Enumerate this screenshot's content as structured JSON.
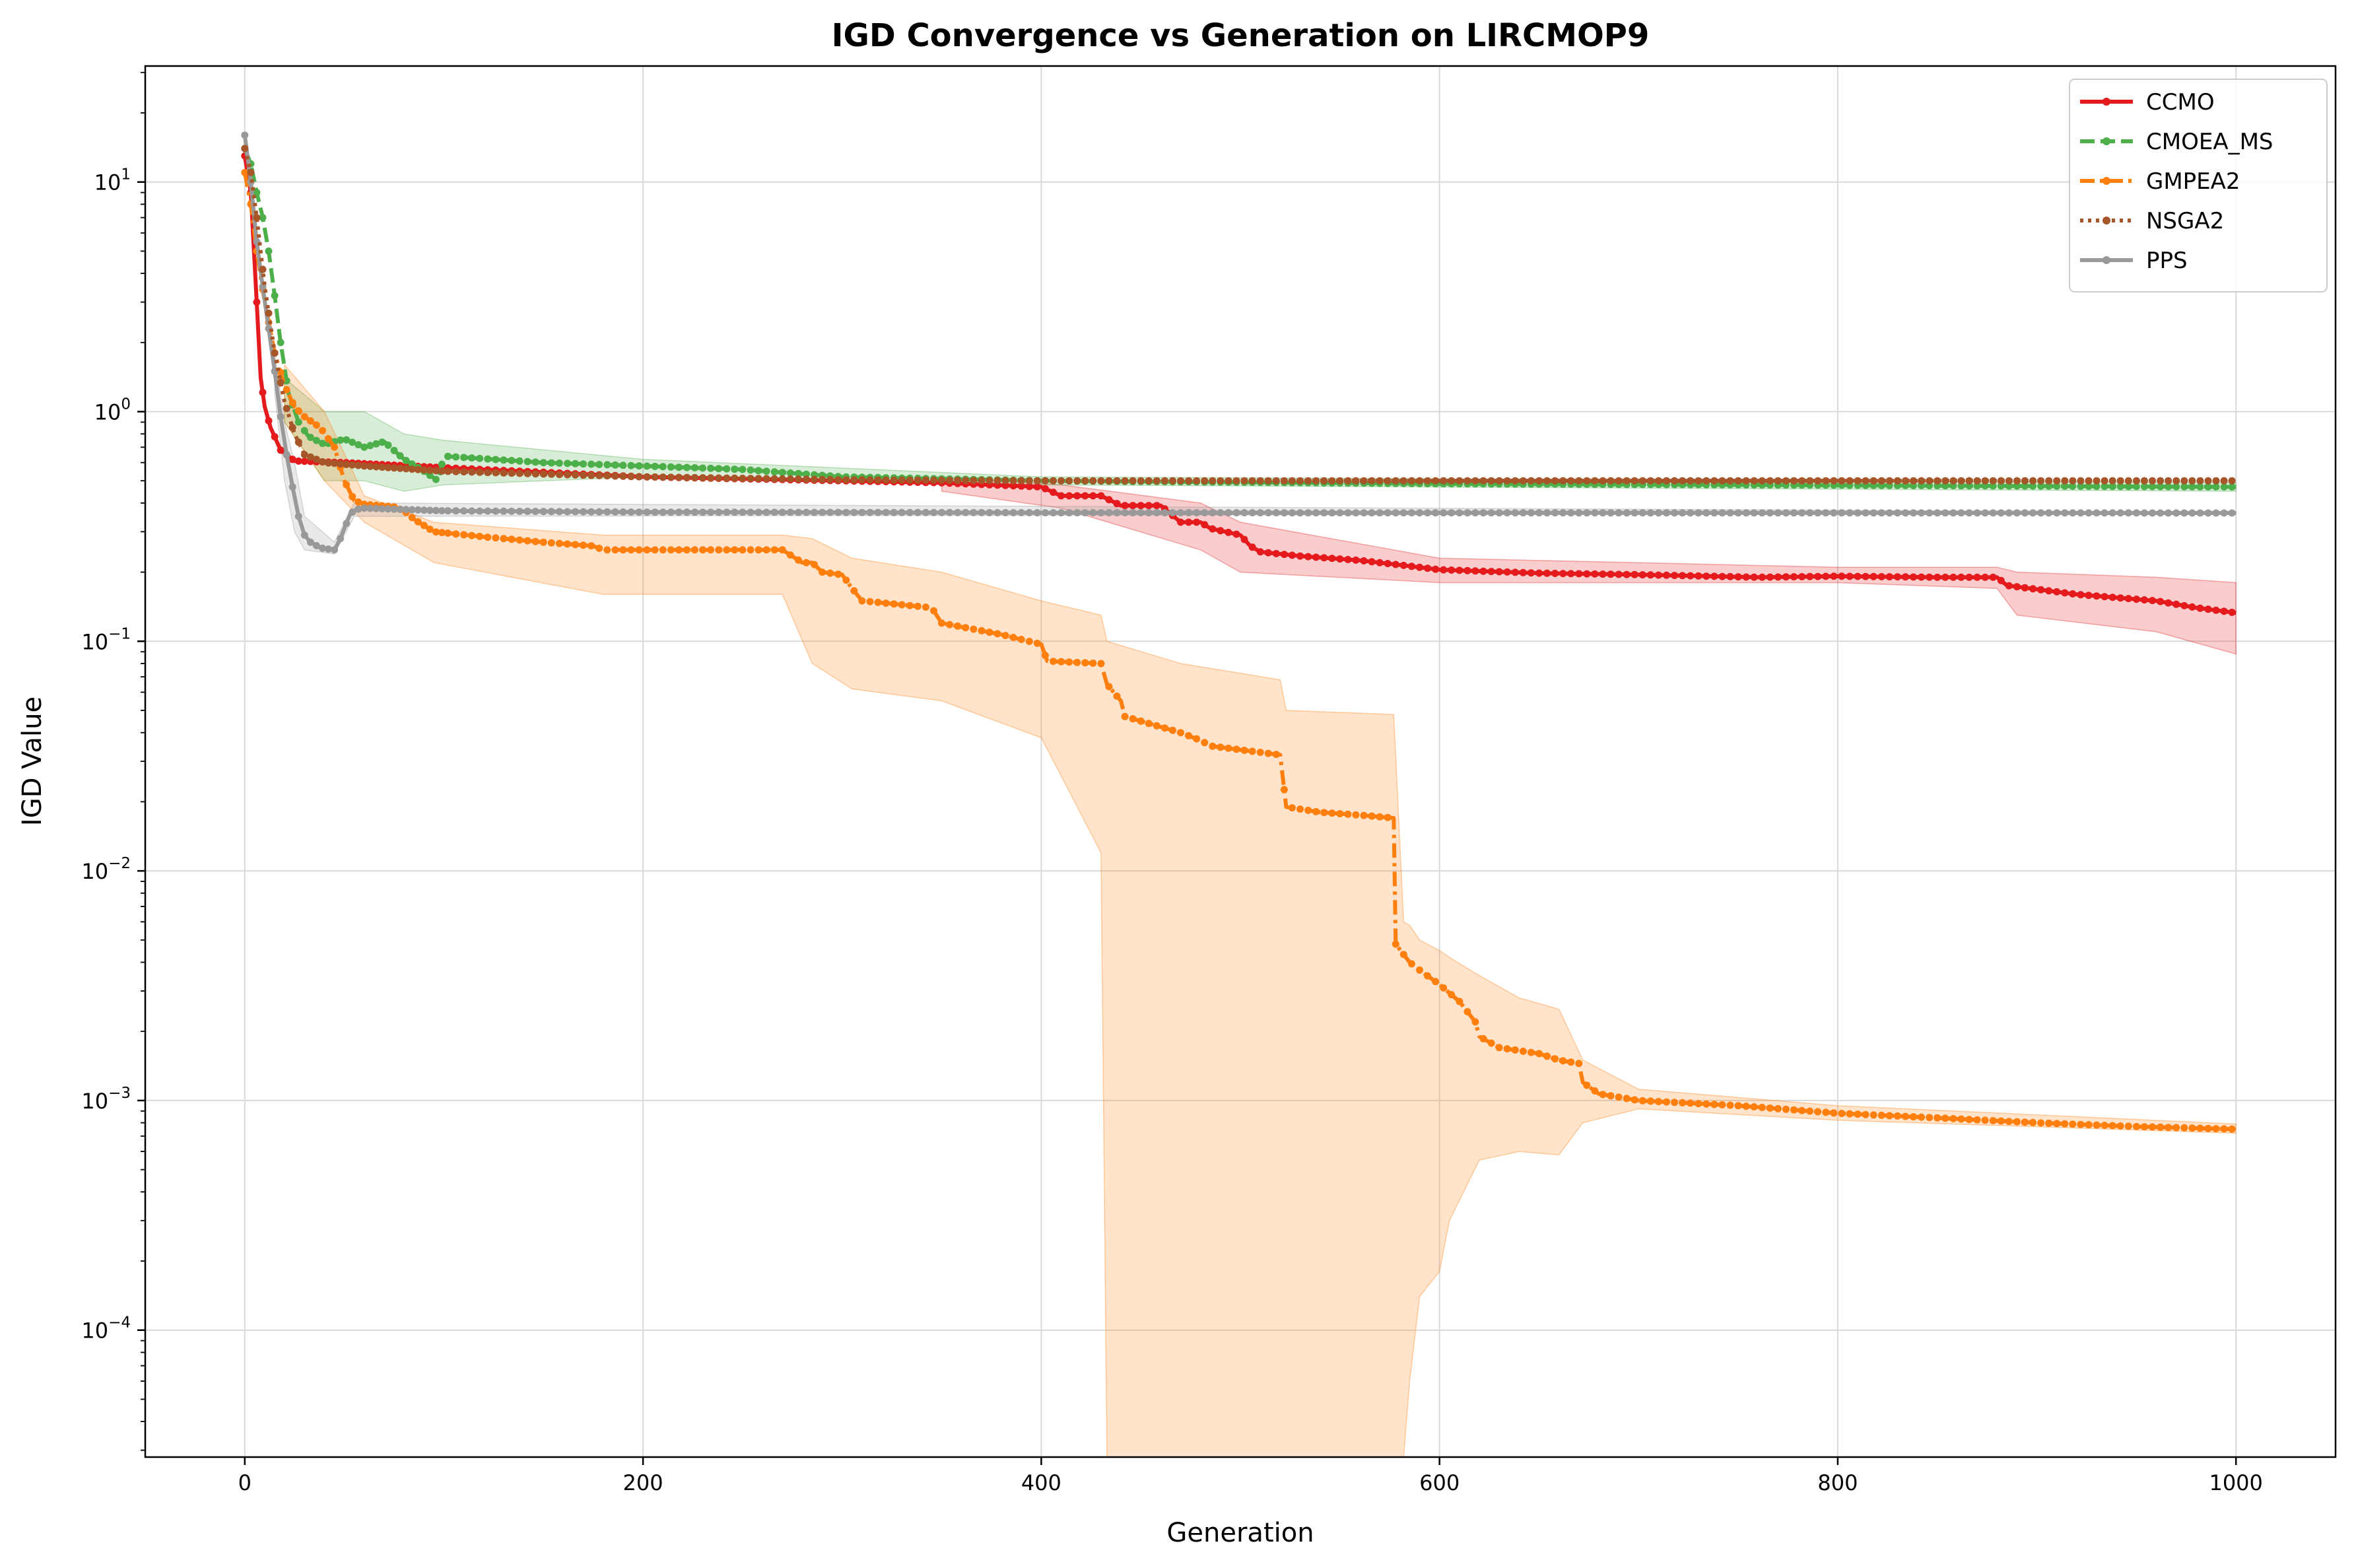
{
  "chart_data": {
    "type": "line",
    "title": "IGD Convergence vs Generation on LIRCMOP9",
    "xlabel": "Generation",
    "ylabel": "IGD Value",
    "yscale": "log",
    "xlim": [
      -50,
      1050
    ],
    "ylim": [
      2.8e-05,
      32
    ],
    "grid": true,
    "legend_placement": "top-right",
    "x_ticks": [
      {
        "value": 0,
        "label": "0"
      },
      {
        "value": 200,
        "label": "200"
      },
      {
        "value": 400,
        "label": "400"
      },
      {
        "value": 600,
        "label": "600"
      },
      {
        "value": 800,
        "label": "800"
      },
      {
        "value": 1000,
        "label": "1000"
      }
    ],
    "y_ticks": [
      {
        "value": 0.0001,
        "base": "10",
        "exp": "−4"
      },
      {
        "value": 0.001,
        "base": "10",
        "exp": "−3"
      },
      {
        "value": 0.01,
        "base": "10",
        "exp": "−2"
      },
      {
        "value": 0.1,
        "base": "10",
        "exp": "−1"
      },
      {
        "value": 1,
        "base": "10",
        "exp": "0"
      },
      {
        "value": 10,
        "base": "10",
        "exp": "1"
      }
    ],
    "series": [
      {
        "name": "CCMO",
        "color": "#e41a1c",
        "dash": "solid",
        "points": [
          [
            0,
            13
          ],
          [
            3,
            9
          ],
          [
            6,
            3
          ],
          [
            8,
            1.4
          ],
          [
            10,
            1.05
          ],
          [
            13,
            0.85
          ],
          [
            18,
            0.68
          ],
          [
            25,
            0.61
          ],
          [
            50,
            0.6
          ],
          [
            100,
            0.57
          ],
          [
            200,
            0.52
          ],
          [
            300,
            0.5
          ],
          [
            350,
            0.49
          ],
          [
            400,
            0.47
          ],
          [
            410,
            0.43
          ],
          [
            430,
            0.43
          ],
          [
            440,
            0.39
          ],
          [
            460,
            0.39
          ],
          [
            470,
            0.33
          ],
          [
            480,
            0.33
          ],
          [
            485,
            0.31
          ],
          [
            500,
            0.29
          ],
          [
            505,
            0.26
          ],
          [
            510,
            0.245
          ],
          [
            530,
            0.235
          ],
          [
            560,
            0.225
          ],
          [
            580,
            0.215
          ],
          [
            600,
            0.205
          ],
          [
            650,
            0.198
          ],
          [
            700,
            0.195
          ],
          [
            760,
            0.19
          ],
          [
            800,
            0.192
          ],
          [
            850,
            0.19
          ],
          [
            880,
            0.19
          ],
          [
            885,
            0.175
          ],
          [
            920,
            0.16
          ],
          [
            960,
            0.15
          ],
          [
            980,
            0.14
          ],
          [
            1000,
            0.133
          ]
        ],
        "band": [
          [
            350,
            0.45,
            0.52
          ],
          [
            410,
            0.38,
            0.48
          ],
          [
            480,
            0.25,
            0.4
          ],
          [
            500,
            0.2,
            0.33
          ],
          [
            600,
            0.18,
            0.23
          ],
          [
            800,
            0.18,
            0.21
          ],
          [
            880,
            0.17,
            0.21
          ],
          [
            890,
            0.13,
            0.2
          ],
          [
            960,
            0.11,
            0.19
          ],
          [
            1000,
            0.088,
            0.18
          ]
        ]
      },
      {
        "name": "CMOEA_MS",
        "color": "#4daf4a",
        "dash": "dashed",
        "points": [
          [
            0,
            14
          ],
          [
            3,
            12
          ],
          [
            6,
            9
          ],
          [
            9,
            7
          ],
          [
            12,
            5
          ],
          [
            15,
            3.2
          ],
          [
            18,
            2
          ],
          [
            22,
            1.2
          ],
          [
            27,
            0.9
          ],
          [
            32,
            0.78
          ],
          [
            40,
            0.72
          ],
          [
            50,
            0.76
          ],
          [
            60,
            0.7
          ],
          [
            70,
            0.74
          ],
          [
            80,
            0.62
          ],
          [
            90,
            0.55
          ],
          [
            97,
            0.5
          ],
          [
            100,
            0.64
          ],
          [
            150,
            0.6
          ],
          [
            200,
            0.58
          ],
          [
            250,
            0.56
          ],
          [
            300,
            0.52
          ],
          [
            400,
            0.5
          ],
          [
            600,
            0.485
          ],
          [
            800,
            0.478
          ],
          [
            1000,
            0.47
          ]
        ],
        "band": [
          [
            20,
            0.9,
            1.4
          ],
          [
            40,
            0.5,
            1.0
          ],
          [
            60,
            0.5,
            1.0
          ],
          [
            80,
            0.45,
            0.8
          ],
          [
            100,
            0.48,
            0.75
          ],
          [
            200,
            0.52,
            0.62
          ],
          [
            400,
            0.48,
            0.52
          ],
          [
            1000,
            0.45,
            0.49
          ]
        ]
      },
      {
        "name": "GMPEA2",
        "color": "#ff7f0e",
        "dash": "dashdot",
        "points": [
          [
            0,
            11
          ],
          [
            3,
            8
          ],
          [
            6,
            5
          ],
          [
            10,
            3
          ],
          [
            15,
            1.8
          ],
          [
            20,
            1.3
          ],
          [
            25,
            1.05
          ],
          [
            30,
            0.95
          ],
          [
            38,
            0.85
          ],
          [
            45,
            0.7
          ],
          [
            50,
            0.5
          ],
          [
            55,
            0.41
          ],
          [
            60,
            0.395
          ],
          [
            75,
            0.385
          ],
          [
            80,
            0.37
          ],
          [
            85,
            0.34
          ],
          [
            95,
            0.3
          ],
          [
            120,
            0.285
          ],
          [
            150,
            0.27
          ],
          [
            175,
            0.26
          ],
          [
            180,
            0.25
          ],
          [
            270,
            0.25
          ],
          [
            280,
            0.22
          ],
          [
            285,
            0.22
          ],
          [
            290,
            0.2
          ],
          [
            300,
            0.195
          ],
          [
            305,
            0.17
          ],
          [
            310,
            0.15
          ],
          [
            345,
            0.14
          ],
          [
            350,
            0.12
          ],
          [
            380,
            0.107
          ],
          [
            400,
            0.097
          ],
          [
            403,
            0.082
          ],
          [
            430,
            0.08
          ],
          [
            433,
            0.065
          ],
          [
            440,
            0.055
          ],
          [
            442,
            0.047
          ],
          [
            470,
            0.04
          ],
          [
            480,
            0.037
          ],
          [
            485,
            0.035
          ],
          [
            520,
            0.032
          ],
          [
            523,
            0.019
          ],
          [
            540,
            0.018
          ],
          [
            560,
            0.0175
          ],
          [
            577,
            0.017
          ],
          [
            578,
            0.0048
          ],
          [
            585,
            0.004
          ],
          [
            590,
            0.0037
          ],
          [
            600,
            0.0032
          ],
          [
            610,
            0.0027
          ],
          [
            618,
            0.0022
          ],
          [
            620,
            0.0019
          ],
          [
            630,
            0.0017
          ],
          [
            650,
            0.0016
          ],
          [
            660,
            0.0015
          ],
          [
            670,
            0.00145
          ],
          [
            672,
            0.0012
          ],
          [
            680,
            0.00107
          ],
          [
            700,
            0.001
          ],
          [
            750,
            0.00095
          ],
          [
            800,
            0.00088
          ],
          [
            850,
            0.00084
          ],
          [
            900,
            0.0008
          ],
          [
            950,
            0.00077
          ],
          [
            1000,
            0.00075
          ]
        ],
        "band": [
          [
            20,
            0.9,
            1.6
          ],
          [
            40,
            0.5,
            1.0
          ],
          [
            60,
            0.33,
            0.43
          ],
          [
            95,
            0.22,
            0.33
          ],
          [
            180,
            0.16,
            0.29
          ],
          [
            270,
            0.16,
            0.29
          ],
          [
            285,
            0.08,
            0.28
          ],
          [
            305,
            0.062,
            0.23
          ],
          [
            350,
            0.055,
            0.2
          ],
          [
            400,
            0.038,
            0.15
          ],
          [
            430,
            0.012,
            0.13
          ],
          [
            433,
            2.8e-05,
            0.1
          ],
          [
            470,
            2.8e-05,
            0.08
          ],
          [
            520,
            2.8e-05,
            0.068
          ],
          [
            523,
            2.8e-05,
            0.05
          ],
          [
            577,
            2.8e-05,
            0.048
          ],
          [
            582,
            2.8e-05,
            0.006
          ],
          [
            585,
            6e-05,
            0.0058
          ],
          [
            590,
            0.00014,
            0.005
          ],
          [
            600,
            0.00018,
            0.0045
          ],
          [
            605,
            0.0003,
            0.0042
          ],
          [
            620,
            0.00055,
            0.0035
          ],
          [
            640,
            0.0006,
            0.0028
          ],
          [
            660,
            0.00058,
            0.0025
          ],
          [
            672,
            0.0008,
            0.0015
          ],
          [
            700,
            0.00092,
            0.00112
          ],
          [
            800,
            0.00082,
            0.00095
          ],
          [
            1000,
            0.00072,
            0.00079
          ]
        ]
      },
      {
        "name": "NSGA2",
        "color": "#a65628",
        "dash": "dotted",
        "points": [
          [
            0,
            14
          ],
          [
            3,
            11
          ],
          [
            6,
            7
          ],
          [
            10,
            3.5
          ],
          [
            15,
            1.8
          ],
          [
            20,
            1.1
          ],
          [
            25,
            0.8
          ],
          [
            30,
            0.65
          ],
          [
            40,
            0.6
          ],
          [
            60,
            0.58
          ],
          [
            100,
            0.55
          ],
          [
            200,
            0.52
          ],
          [
            300,
            0.505
          ],
          [
            400,
            0.5
          ],
          [
            600,
            0.5
          ],
          [
            800,
            0.5
          ],
          [
            1000,
            0.5
          ]
        ],
        "band": []
      },
      {
        "name": "PPS",
        "color": "#999999",
        "dash": "solid",
        "points": [
          [
            0,
            16
          ],
          [
            3,
            10
          ],
          [
            6,
            5.5
          ],
          [
            9,
            3.5
          ],
          [
            12,
            2.3
          ],
          [
            15,
            1.5
          ],
          [
            18,
            0.95
          ],
          [
            21,
            0.65
          ],
          [
            24,
            0.47
          ],
          [
            27,
            0.35
          ],
          [
            30,
            0.29
          ],
          [
            33,
            0.27
          ],
          [
            38,
            0.255
          ],
          [
            45,
            0.25
          ],
          [
            48,
            0.28
          ],
          [
            50,
            0.31
          ],
          [
            53,
            0.36
          ],
          [
            56,
            0.375
          ],
          [
            60,
            0.38
          ],
          [
            100,
            0.37
          ],
          [
            200,
            0.365
          ],
          [
            400,
            0.363
          ],
          [
            1000,
            0.362
          ]
        ],
        "band": [
          [
            15,
            1.2,
            1.8
          ],
          [
            20,
            0.5,
            0.9
          ],
          [
            25,
            0.3,
            0.6
          ],
          [
            30,
            0.25,
            0.35
          ],
          [
            45,
            0.24,
            0.27
          ],
          [
            55,
            0.35,
            0.4
          ],
          [
            1000,
            0.36,
            0.365
          ]
        ]
      }
    ]
  }
}
